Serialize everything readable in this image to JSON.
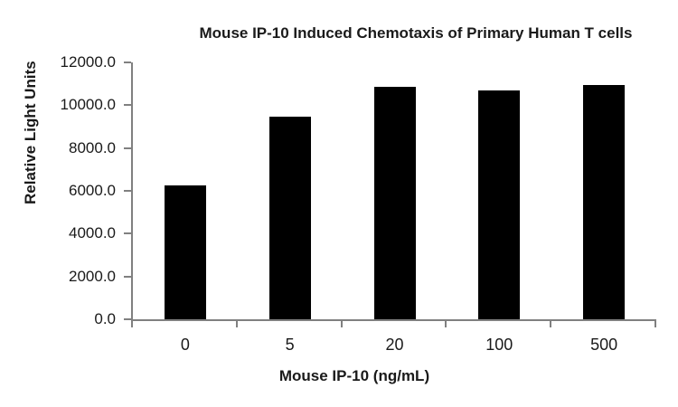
{
  "chart_data": {
    "type": "bar",
    "title": "Mouse IP-10 Induced Chemotaxis of Primary Human T cells",
    "xlabel": "Mouse IP-10 (ng/mL)",
    "ylabel": "Relative Light Units",
    "categories": [
      "0",
      "5",
      "20",
      "100",
      "500"
    ],
    "values": [
      6250,
      9450,
      10850,
      10700,
      10950
    ],
    "ylim": [
      0,
      12000
    ],
    "ytick_step": 2000,
    "ytick_labels": [
      "0.0",
      "2000.0",
      "4000.0",
      "6000.0",
      "8000.0",
      "10000.0",
      "12000.0"
    ],
    "grid": false,
    "legend": "none",
    "bar_color": "#000000",
    "axis_color": "#808080",
    "text_color": "#1a1a1a",
    "background_color": "#ffffff"
  }
}
